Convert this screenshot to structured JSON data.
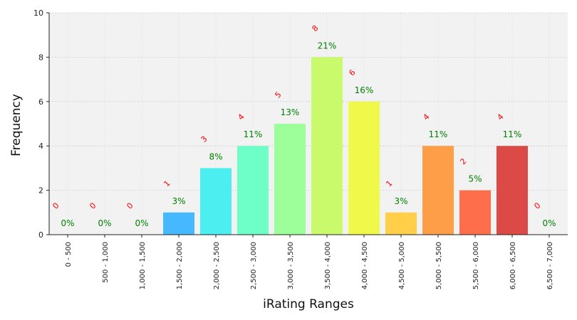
{
  "chart_data": {
    "type": "bar",
    "xlabel": "iRating Ranges",
    "ylabel": "Frequency",
    "ylim": [
      0,
      10
    ],
    "yticks": [
      0,
      2,
      4,
      6,
      8,
      10
    ],
    "grid": true,
    "categories": [
      "0 - 500",
      "500 - 1,000",
      "1,000 - 1,500",
      "1,500 - 2,000",
      "2,000 - 2,500",
      "2,500 - 3,000",
      "3,000 - 3,500",
      "3,500 - 4,000",
      "4,000 - 4,500",
      "4,500 - 5,000",
      "5,000 - 5,500",
      "5,500 - 6,000",
      "6,000 - 6,500",
      "6,500 - 7,000"
    ],
    "values": [
      0,
      0,
      0,
      1,
      3,
      4,
      5,
      8,
      6,
      1,
      4,
      2,
      4,
      0
    ],
    "count_labels": [
      "0",
      "0",
      "0",
      "1",
      "3",
      "4",
      "5",
      "8",
      "6",
      "1",
      "4",
      "2",
      "4",
      "0"
    ],
    "percent_labels": [
      "0%",
      "0%",
      "0%",
      "3%",
      "8%",
      "11%",
      "13%",
      "21%",
      "16%",
      "3%",
      "11%",
      "5%",
      "11%",
      "0%"
    ],
    "colors": [
      "#1f77ff",
      "#1f9cff",
      "#22b8ff",
      "#46b8ff",
      "#4ceef0",
      "#6effc8",
      "#9cff9a",
      "#c8fa6c",
      "#f0f94a",
      "#ffcf4a",
      "#ff9e48",
      "#ff6e4a",
      "#dc4a48",
      "#c83a3a"
    ],
    "count_color": "#ff0000",
    "percent_color": "#008000",
    "plot_background": "#f2f2f2"
  }
}
